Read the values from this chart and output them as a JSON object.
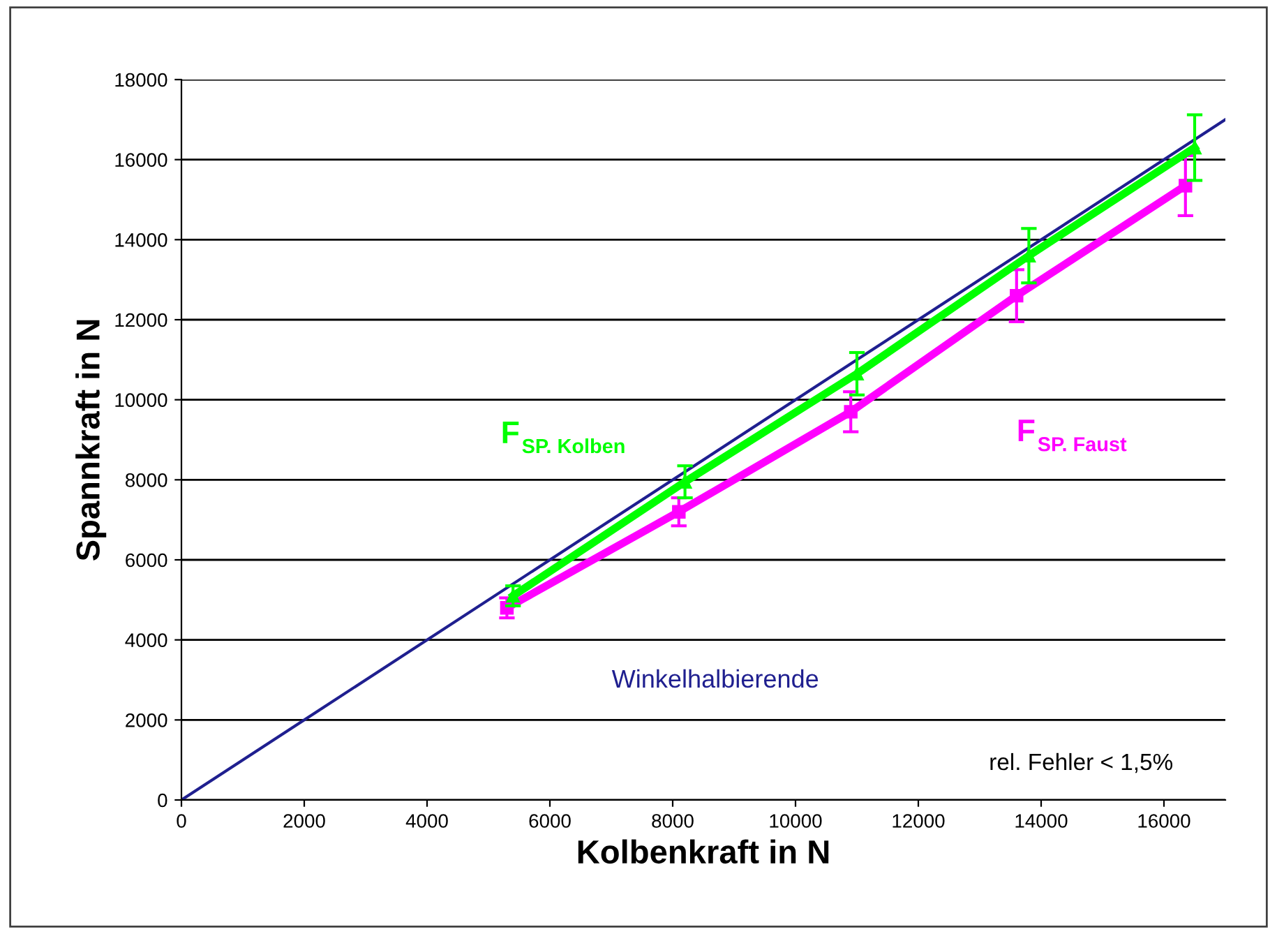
{
  "chart_data": {
    "type": "line",
    "xlabel": "Kolbenkraft in N",
    "ylabel": "Spannkraft in N",
    "xlim": [
      0,
      17000
    ],
    "ylim": [
      0,
      18000
    ],
    "xticks": [
      0,
      2000,
      4000,
      6000,
      8000,
      10000,
      12000,
      14000,
      16000
    ],
    "yticks": [
      0,
      2000,
      4000,
      6000,
      8000,
      10000,
      12000,
      14000,
      16000,
      18000
    ],
    "grid": "y",
    "legend": false,
    "series": [
      {
        "name": "F$_{SP. Kolben}$",
        "color": "#00ff00",
        "marker": "triangle",
        "x": [
          5400,
          8200,
          11000,
          13800,
          16500
        ],
        "values": [
          5100,
          7950,
          10650,
          13600,
          16300
        ],
        "errors": [
          250,
          400,
          530,
          680,
          820
        ]
      },
      {
        "name": "F$_{SP. Faust}$",
        "color": "#ff00ff",
        "marker": "square",
        "x": [
          5300,
          8100,
          10900,
          13600,
          16350
        ],
        "values": [
          4800,
          7200,
          9700,
          12600,
          15350
        ],
        "errors": [
          250,
          350,
          500,
          650,
          750
        ]
      },
      {
        "name": "Winkelhalbierende",
        "color": "#1f1f8f",
        "marker": "none",
        "x": [
          0,
          17000
        ],
        "values": [
          0,
          17000
        ]
      }
    ],
    "annotations": [
      "rel. Fehler < 1,5%"
    ]
  }
}
